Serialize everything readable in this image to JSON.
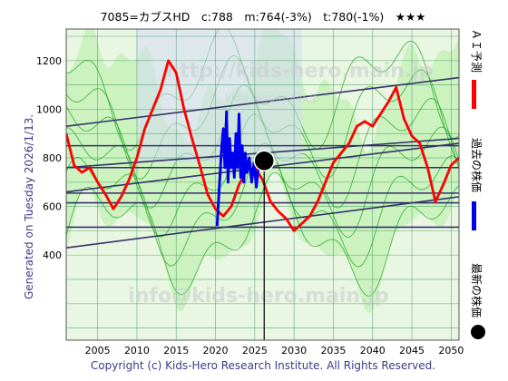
{
  "header": {
    "title": "7085=カブスHD　c:788　m:764(-3%)　t:780(-1%)　★★★"
  },
  "side_note": "Generated on Tuesday 2026/1/13.",
  "legend": {
    "ai": "ＡＩ予測",
    "past": "過去の株価",
    "latest": "最新の株価"
  },
  "watermarks": {
    "top": "http://kids-hero.main.jp",
    "mid": "kids-hero.main.jp",
    "bottom": "info@kids-hero.main.jp"
  },
  "footer": {
    "copyright": "Copyright (c) Kids-Hero Research Institute. All Rights Reserved."
  },
  "colors": {
    "ai": "#ff0000",
    "past": "#0000ee",
    "latest": "#000000",
    "trend": "#333366",
    "band_line": "#22aa22",
    "band_fill": "#b8f0a8",
    "plot_bg": "#e9f6e1"
  },
  "chart_data": {
    "type": "line",
    "title": "7085=カブスHD　c:788　m:764(-3%)　t:780(-1%)　★★★",
    "x_ticks": [
      2005,
      2010,
      2015,
      2020,
      2025,
      2030,
      2035,
      2040,
      2045,
      2050
    ],
    "y_ticks": [
      400,
      600,
      800,
      1000,
      1200
    ],
    "xlim": [
      2001,
      2051
    ],
    "ylim": [
      50,
      1330
    ],
    "grid": true,
    "legend_placement": "right",
    "latest_point": {
      "x": 2026.2,
      "y": 788
    },
    "series": [
      {
        "name": "ＡＩ予測",
        "color": "#ff0000",
        "points": [
          [
            2001,
            900
          ],
          [
            2002,
            770
          ],
          [
            2003,
            740
          ],
          [
            2004,
            760
          ],
          [
            2005,
            700
          ],
          [
            2006,
            650
          ],
          [
            2007,
            590
          ],
          [
            2008,
            640
          ],
          [
            2009,
            710
          ],
          [
            2010,
            800
          ],
          [
            2010.5,
            860
          ],
          [
            2011,
            920
          ],
          [
            2012,
            1000
          ],
          [
            2013,
            1080
          ],
          [
            2014,
            1200
          ],
          [
            2015,
            1150
          ],
          [
            2016,
            1000
          ],
          [
            2017,
            880
          ],
          [
            2018,
            770
          ],
          [
            2019,
            650
          ],
          [
            2020,
            590
          ],
          [
            2021,
            560
          ],
          [
            2022,
            600
          ],
          [
            2023,
            690
          ],
          [
            2024,
            750
          ],
          [
            2025,
            760
          ],
          [
            2026,
            710
          ],
          [
            2027,
            620
          ],
          [
            2028,
            580
          ],
          [
            2029,
            550
          ],
          [
            2030,
            500
          ],
          [
            2031,
            530
          ],
          [
            2032,
            560
          ],
          [
            2033,
            620
          ],
          [
            2034,
            700
          ],
          [
            2035,
            780
          ],
          [
            2036,
            820
          ],
          [
            2037,
            860
          ],
          [
            2038,
            930
          ],
          [
            2039,
            950
          ],
          [
            2040,
            930
          ],
          [
            2041,
            980
          ],
          [
            2042,
            1030
          ],
          [
            2043,
            1090
          ],
          [
            2044,
            960
          ],
          [
            2045,
            890
          ],
          [
            2046,
            860
          ],
          [
            2047,
            760
          ],
          [
            2048,
            620
          ],
          [
            2049,
            690
          ],
          [
            2050,
            770
          ],
          [
            2051,
            800
          ]
        ]
      },
      {
        "name": "過去の株価",
        "color": "#0000ee",
        "points": [
          [
            2020.2,
            520
          ],
          [
            2020.5,
            690
          ],
          [
            2020.8,
            850
          ],
          [
            2021.0,
            920
          ],
          [
            2021.2,
            760
          ],
          [
            2021.4,
            990
          ],
          [
            2021.6,
            700
          ],
          [
            2021.8,
            880
          ],
          [
            2022.0,
            760
          ],
          [
            2022.2,
            820
          ],
          [
            2022.4,
            720
          ],
          [
            2022.6,
            900
          ],
          [
            2022.8,
            760
          ],
          [
            2023.0,
            980
          ],
          [
            2023.2,
            720
          ],
          [
            2023.4,
            850
          ],
          [
            2023.6,
            700
          ],
          [
            2023.8,
            820
          ],
          [
            2024.0,
            740
          ],
          [
            2024.3,
            800
          ],
          [
            2024.6,
            700
          ],
          [
            2024.9,
            780
          ],
          [
            2025.2,
            680
          ],
          [
            2025.5,
            780
          ],
          [
            2025.8,
            760
          ],
          [
            2026.2,
            788
          ]
        ]
      }
    ]
  }
}
